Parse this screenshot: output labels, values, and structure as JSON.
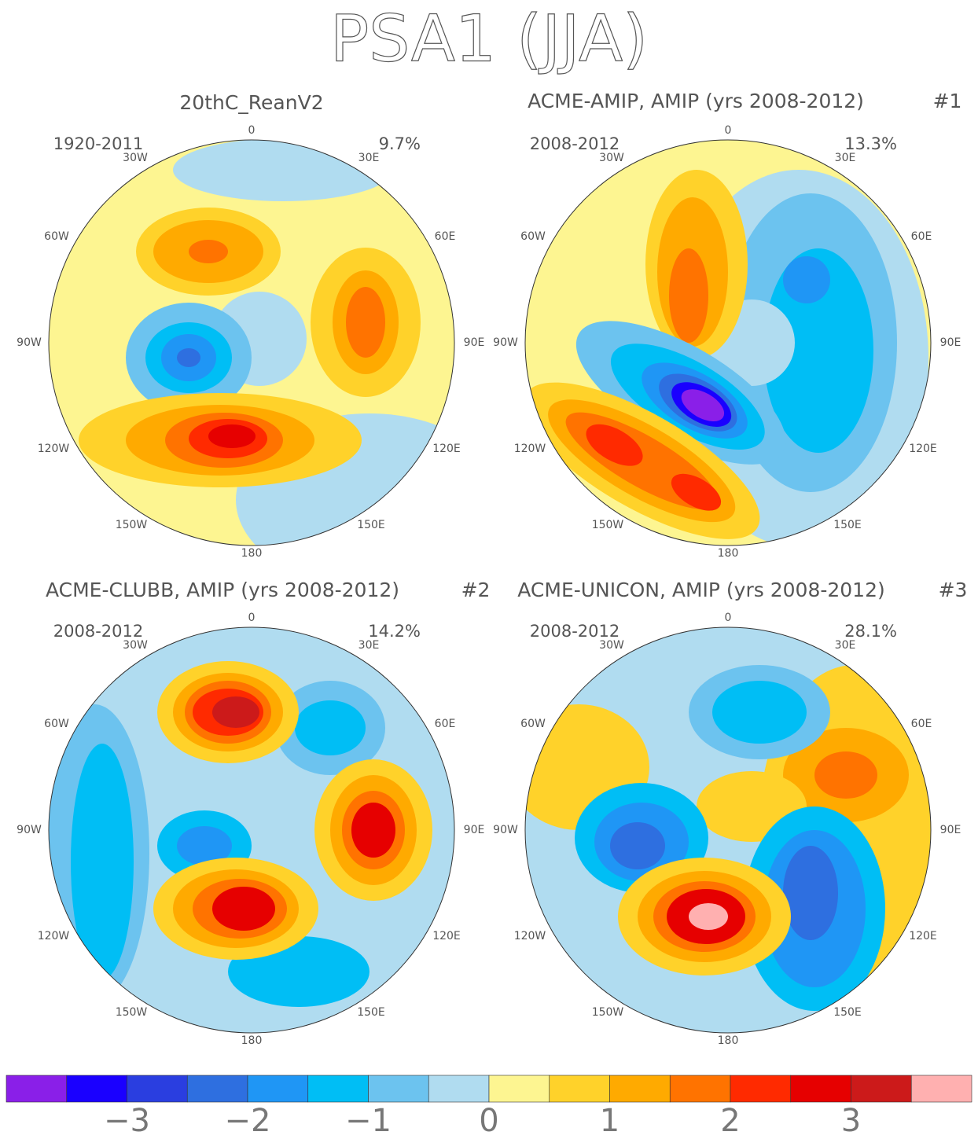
{
  "title": "PSA1 (JJA)",
  "panels": [
    {
      "title": "20thC_ReanV2",
      "period": "1920-2011",
      "percent": "9.7%"
    },
    {
      "title": "ACME-AMIP, AMIP (yrs 2008-2012)",
      "tag": "#1",
      "period": "2008-2012",
      "percent": "13.3%"
    },
    {
      "title": "ACME-CLUBB, AMIP (yrs 2008-2012)",
      "tag": "#2",
      "period": "2008-2012",
      "percent": "14.2%"
    },
    {
      "title": "ACME-UNICON, AMIP (yrs 2008-2012)",
      "tag": "#3",
      "period": "2008-2012",
      "percent": "28.1%"
    }
  ],
  "lon_labels": [
    "0",
    "30E",
    "60E",
    "90E",
    "120E",
    "150E",
    "180",
    "150W",
    "120W",
    "90W",
    "60W",
    "30W"
  ],
  "colorbar": {
    "colors": [
      "#8a1fe8",
      "#1a00ff",
      "#2a3ee0",
      "#2e6fe0",
      "#1f96f5",
      "#00bef5",
      "#6cc3ef",
      "#b0dcf0",
      "#fdf591",
      "#ffd22a",
      "#ffaa00",
      "#ff7300",
      "#ff2a00",
      "#e60000",
      "#cc1a1a",
      "#ffb0b0"
    ],
    "lim": [
      -4,
      4
    ],
    "ticks": [
      {
        "value": -3,
        "label": "−3"
      },
      {
        "value": -2,
        "label": "−2"
      },
      {
        "value": -1,
        "label": "−1"
      },
      0,
      1,
      2,
      3
    ]
  }
}
